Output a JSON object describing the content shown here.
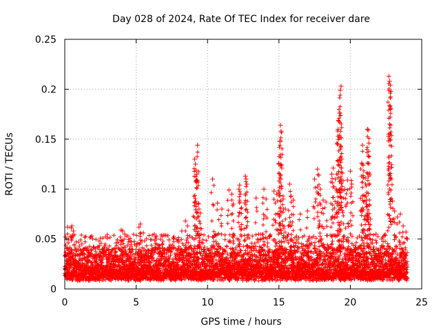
{
  "chart_data": {
    "type": "scatter",
    "title": "Day 028 of 2024, Rate Of TEC Index for receiver dare",
    "xlabel": "GPS time / hours",
    "ylabel": "ROTI / TECUs",
    "xlim": [
      0,
      25
    ],
    "ylim": [
      0,
      0.25
    ],
    "x_ticks": [
      0,
      5,
      10,
      15,
      20,
      25
    ],
    "x_tick_labels": [
      "0",
      "5",
      "10",
      "15",
      "20",
      "25"
    ],
    "y_ticks": [
      0,
      0.05,
      0.1,
      0.15,
      0.2,
      0.25
    ],
    "y_tick_labels": [
      "0",
      "0.05",
      "0.1",
      "0.15",
      "0.2",
      "0.25"
    ],
    "grid": true,
    "marker": "+",
    "series": [
      {
        "name": "ROTI",
        "color": "#ff0000",
        "background_band": {
          "x_range": [
            0,
            24
          ],
          "y_range_typical": [
            0.008,
            0.04
          ]
        },
        "points": [
          [
            0.05,
            0.052
          ],
          [
            0.2,
            0.062
          ],
          [
            0.45,
            0.061
          ],
          [
            0.5,
            0.063
          ],
          [
            0.6,
            0.058
          ],
          [
            1.2,
            0.045
          ],
          [
            2.0,
            0.042
          ],
          [
            2.8,
            0.043
          ],
          [
            3.6,
            0.046
          ],
          [
            3.95,
            0.059
          ],
          [
            4.05,
            0.058
          ],
          [
            4.2,
            0.055
          ],
          [
            5.2,
            0.062
          ],
          [
            5.3,
            0.065
          ],
          [
            5.5,
            0.056
          ],
          [
            6.4,
            0.05
          ],
          [
            7.3,
            0.049
          ],
          [
            7.6,
            0.051
          ],
          [
            8.2,
            0.058
          ],
          [
            8.45,
            0.068
          ],
          [
            8.6,
            0.063
          ],
          [
            9.1,
            0.13
          ],
          [
            9.15,
            0.125
          ],
          [
            9.2,
            0.119
          ],
          [
            9.25,
            0.115
          ],
          [
            9.3,
            0.144
          ],
          [
            9.35,
            0.085
          ],
          [
            9.4,
            0.08
          ],
          [
            9.5,
            0.076
          ],
          [
            10.35,
            0.11
          ],
          [
            10.7,
            0.086
          ],
          [
            11.0,
            0.08
          ],
          [
            11.5,
            0.099
          ],
          [
            11.7,
            0.095
          ],
          [
            11.8,
            0.085
          ],
          [
            12.2,
            0.1
          ],
          [
            12.25,
            0.104
          ],
          [
            12.3,
            0.095
          ],
          [
            12.65,
            0.113
          ],
          [
            12.7,
            0.11
          ],
          [
            12.75,
            0.105
          ],
          [
            13.4,
            0.091
          ],
          [
            13.95,
            0.1
          ],
          [
            14.1,
            0.09
          ],
          [
            14.65,
            0.098
          ],
          [
            14.85,
            0.095
          ],
          [
            15.0,
            0.125
          ],
          [
            15.05,
            0.148
          ],
          [
            15.1,
            0.164
          ],
          [
            15.15,
            0.158
          ],
          [
            15.2,
            0.121
          ],
          [
            15.3,
            0.09
          ],
          [
            15.45,
            0.08
          ],
          [
            15.75,
            0.105
          ],
          [
            15.85,
            0.093
          ],
          [
            16.0,
            0.089
          ],
          [
            16.5,
            0.075
          ],
          [
            17.0,
            0.078
          ],
          [
            17.5,
            0.11
          ],
          [
            17.7,
            0.12
          ],
          [
            17.8,
            0.114
          ],
          [
            17.9,
            0.1
          ],
          [
            18.1,
            0.089
          ],
          [
            18.3,
            0.087
          ],
          [
            18.7,
            0.115
          ],
          [
            18.8,
            0.121
          ],
          [
            18.95,
            0.11
          ],
          [
            19.1,
            0.145
          ],
          [
            19.15,
            0.16
          ],
          [
            19.2,
            0.168
          ],
          [
            19.25,
            0.176
          ],
          [
            19.3,
            0.199
          ],
          [
            19.35,
            0.203
          ],
          [
            19.4,
            0.13
          ],
          [
            19.45,
            0.116
          ],
          [
            19.6,
            0.1
          ],
          [
            19.8,
            0.109
          ],
          [
            20.0,
            0.118
          ],
          [
            20.1,
            0.105
          ],
          [
            20.8,
            0.126
          ],
          [
            20.85,
            0.144
          ],
          [
            20.9,
            0.124
          ],
          [
            21.05,
            0.111
          ],
          [
            21.1,
            0.093
          ],
          [
            21.15,
            0.089
          ],
          [
            21.2,
            0.16
          ],
          [
            21.25,
            0.159
          ],
          [
            21.3,
            0.146
          ],
          [
            21.4,
            0.07
          ],
          [
            21.8,
            0.055
          ],
          [
            22.2,
            0.05
          ],
          [
            22.7,
            0.213
          ],
          [
            22.75,
            0.208
          ],
          [
            22.8,
            0.204
          ],
          [
            22.85,
            0.198
          ],
          [
            22.95,
            0.088
          ],
          [
            23.1,
            0.078
          ],
          [
            23.3,
            0.072
          ],
          [
            23.5,
            0.075
          ],
          [
            23.7,
            0.063
          ],
          [
            23.9,
            0.057
          ],
          [
            24.0,
            0.05
          ]
        ]
      }
    ]
  }
}
